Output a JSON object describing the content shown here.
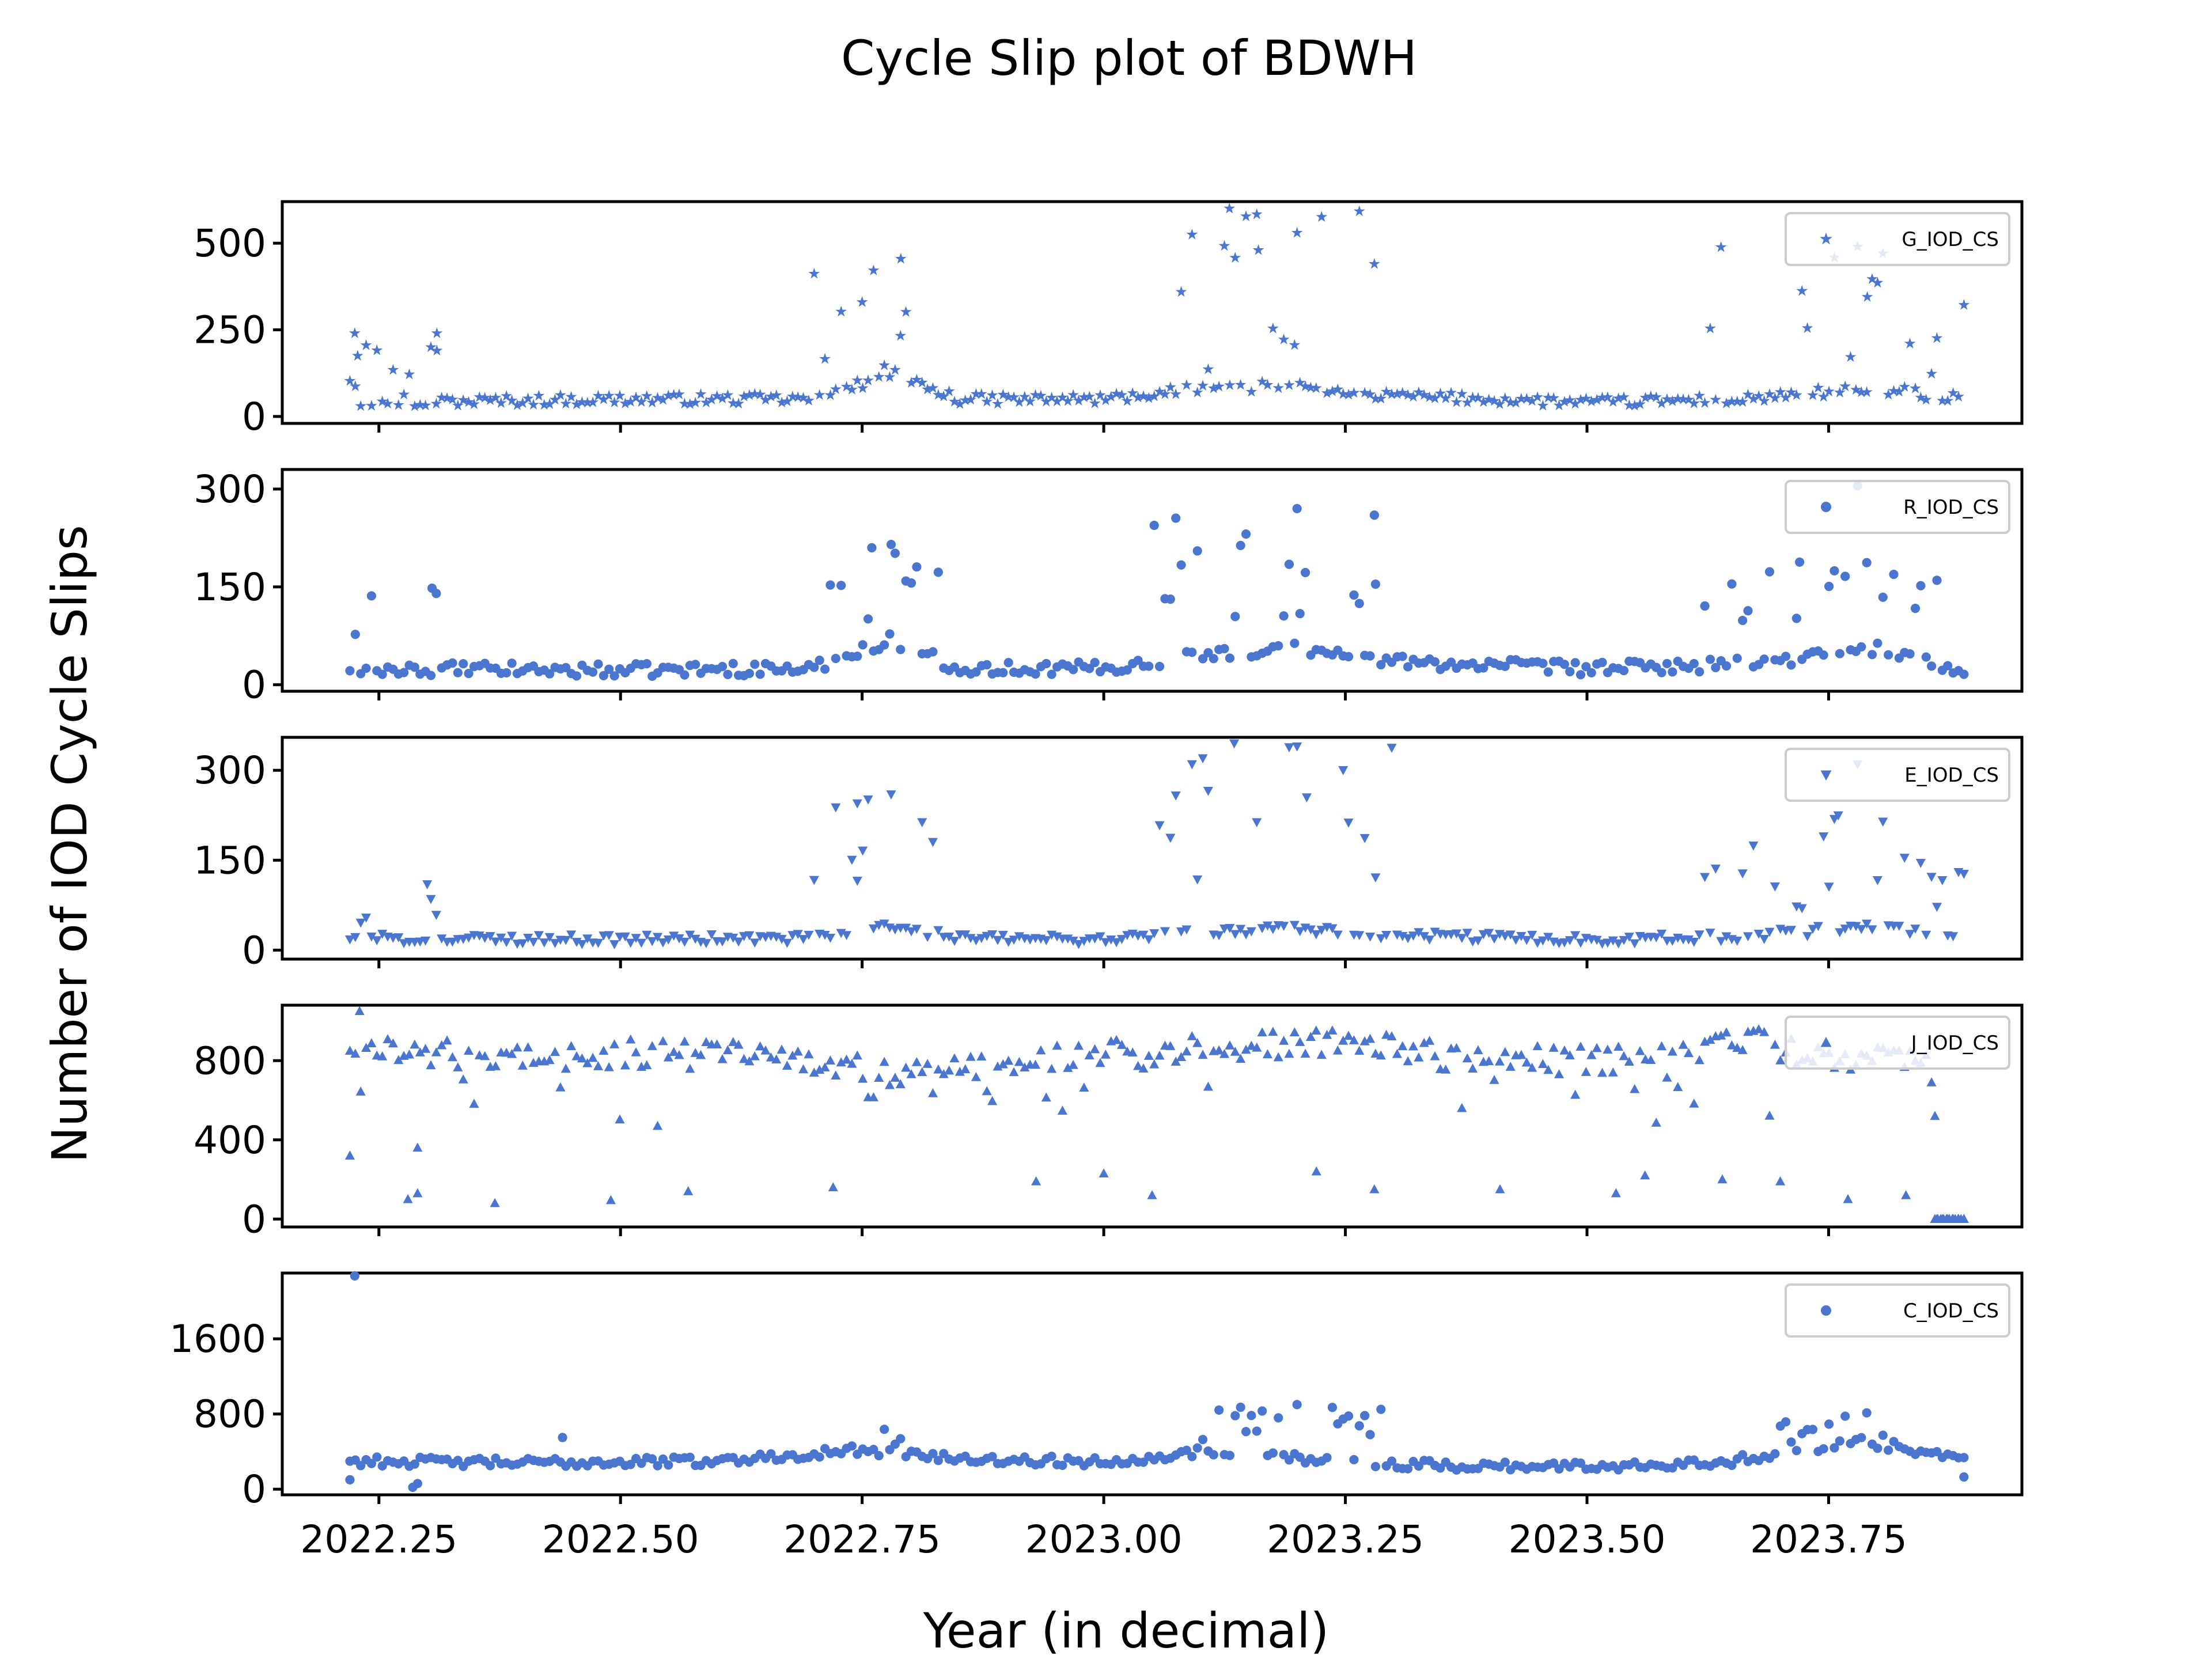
{
  "title": "Cycle Slip plot of BDWH",
  "xlabel": "Year (in decimal)",
  "ylabel": "Number of IOD Cycle Slips",
  "colors": {
    "marker": "#4a76cf",
    "axes": "#000000",
    "legend_border": "#cccccc"
  },
  "chart_data": {
    "type": "scatter",
    "xlim": [
      2022.15,
      2023.95
    ],
    "x_ticks": [
      2022.25,
      2022.5,
      2022.75,
      2023.0,
      2023.25,
      2023.5,
      2023.75
    ],
    "x_tick_labels": [
      "2022.25",
      "2022.50",
      "2022.75",
      "2023.00",
      "2023.25",
      "2023.50",
      "2023.75"
    ],
    "x_range": [
      2022.22,
      2023.89
    ],
    "grid": false,
    "legend_placement": "top-right",
    "panels": [
      {
        "name": "G_IOD_CS",
        "marker": "star",
        "ylim": [
          -20,
          620
        ],
        "y_ticks": [
          0,
          250,
          500
        ],
        "y_tick_labels": [
          "0",
          "250",
          "500"
        ],
        "baseline": [
          [
            2022.22,
            40
          ],
          [
            2022.5,
            50
          ],
          [
            2022.7,
            50
          ],
          [
            2022.78,
            120
          ],
          [
            2022.85,
            50
          ],
          [
            2023.0,
            50
          ],
          [
            2023.1,
            80
          ],
          [
            2023.2,
            90
          ],
          [
            2023.3,
            60
          ],
          [
            2023.5,
            40
          ],
          [
            2023.65,
            50
          ],
          [
            2023.8,
            80
          ],
          [
            2023.89,
            50
          ]
        ],
        "spike_windows": [
          [
            2022.22,
            2022.31,
            60,
            240
          ],
          [
            2022.7,
            2022.83,
            110,
            450
          ],
          [
            2023.05,
            2023.3,
            130,
            600
          ],
          [
            2023.62,
            2023.89,
            110,
            500
          ]
        ],
        "noise": 15,
        "points": [
          [
            2022.225,
            240
          ],
          [
            2022.228,
            175
          ],
          [
            2022.31,
            240
          ],
          [
            2022.31,
            190
          ],
          [
            2022.75,
            330
          ],
          [
            2022.79,
            455
          ],
          [
            2023.13,
            600
          ],
          [
            2023.16,
            480
          ],
          [
            2023.2,
            530
          ],
          [
            2023.28,
            440
          ],
          [
            2023.78,
            490
          ],
          [
            2023.79,
            345
          ]
        ]
      },
      {
        "name": "R_IOD_CS",
        "marker": "circle",
        "ylim": [
          -10,
          330
        ],
        "y_ticks": [
          0,
          150,
          300
        ],
        "y_tick_labels": [
          "0",
          "150",
          "300"
        ],
        "baseline": [
          [
            2022.22,
            25
          ],
          [
            2022.5,
            22
          ],
          [
            2022.7,
            25
          ],
          [
            2022.78,
            70
          ],
          [
            2022.85,
            25
          ],
          [
            2023.0,
            25
          ],
          [
            2023.1,
            45
          ],
          [
            2023.2,
            55
          ],
          [
            2023.3,
            35
          ],
          [
            2023.5,
            25
          ],
          [
            2023.65,
            30
          ],
          [
            2023.8,
            55
          ],
          [
            2023.89,
            20
          ]
        ],
        "spike_windows": [
          [
            2022.22,
            2022.31,
            40,
            150
          ],
          [
            2022.7,
            2022.83,
            90,
            215
          ],
          [
            2023.05,
            2023.3,
            100,
            265
          ],
          [
            2023.62,
            2023.89,
            80,
            190
          ]
        ],
        "noise": 10,
        "points": [
          [
            2022.305,
            148
          ],
          [
            2022.76,
            210
          ],
          [
            2022.78,
            215
          ],
          [
            2023.2,
            270
          ],
          [
            2023.28,
            260
          ],
          [
            2023.78,
            305
          ],
          [
            2023.72,
            188
          ]
        ]
      },
      {
        "name": "E_IOD_CS",
        "marker": "triangle-down",
        "ylim": [
          -15,
          355
        ],
        "y_ticks": [
          0,
          150,
          300
        ],
        "y_tick_labels": [
          "0",
          "150",
          "300"
        ],
        "baseline": [
          [
            2022.22,
            20
          ],
          [
            2022.5,
            18
          ],
          [
            2022.7,
            20
          ],
          [
            2022.78,
            40
          ],
          [
            2022.85,
            20
          ],
          [
            2023.0,
            18
          ],
          [
            2023.1,
            30
          ],
          [
            2023.2,
            35
          ],
          [
            2023.3,
            25
          ],
          [
            2023.5,
            18
          ],
          [
            2023.65,
            22
          ],
          [
            2023.8,
            40
          ],
          [
            2023.89,
            15
          ]
        ],
        "spike_windows": [
          [
            2022.22,
            2022.31,
            40,
            110
          ],
          [
            2022.7,
            2022.83,
            80,
            260
          ],
          [
            2023.05,
            2023.3,
            90,
            345
          ],
          [
            2023.62,
            2023.89,
            70,
            225
          ]
        ],
        "noise": 8,
        "points": [
          [
            2022.3,
            110
          ],
          [
            2022.745,
            245
          ],
          [
            2022.78,
            260
          ],
          [
            2023.135,
            345
          ],
          [
            2023.2,
            340
          ],
          [
            2023.21,
            255
          ],
          [
            2023.78,
            310
          ],
          [
            2023.76,
            225
          ]
        ]
      },
      {
        "name": "J_IOD_CS",
        "marker": "triangle-up",
        "ylim": [
          -40,
          1080
        ],
        "y_ticks": [
          0,
          400,
          800
        ],
        "y_tick_labels": [
          "0",
          "400",
          "800"
        ],
        "baseline": [
          [
            2022.22,
            860
          ],
          [
            2022.4,
            820
          ],
          [
            2022.6,
            850
          ],
          [
            2022.8,
            720
          ],
          [
            2022.9,
            800
          ],
          [
            2023.1,
            860
          ],
          [
            2023.25,
            900
          ],
          [
            2023.35,
            820
          ],
          [
            2023.55,
            800
          ],
          [
            2023.67,
            920
          ],
          [
            2023.75,
            780
          ],
          [
            2023.86,
            850
          ]
        ],
        "drops": 48,
        "noise": 70,
        "zero_from": 2023.86,
        "points": [
          [
            2022.22,
            320
          ],
          [
            2022.23,
            1050
          ],
          [
            2022.28,
            100
          ],
          [
            2022.29,
            130
          ],
          [
            2022.29,
            360
          ],
          [
            2022.37,
            80
          ],
          [
            2022.49,
            95
          ],
          [
            2022.57,
            140
          ],
          [
            2022.72,
            160
          ],
          [
            2022.93,
            190
          ],
          [
            2023.0,
            230
          ],
          [
            2023.05,
            120
          ],
          [
            2023.22,
            240
          ],
          [
            2023.28,
            150
          ],
          [
            2023.41,
            150
          ],
          [
            2023.53,
            130
          ],
          [
            2023.56,
            220
          ],
          [
            2023.64,
            200
          ],
          [
            2023.7,
            190
          ],
          [
            2023.77,
            100
          ],
          [
            2023.83,
            120
          ],
          [
            2023.86,
            520
          ]
        ]
      },
      {
        "name": "C_IOD_CS",
        "marker": "circle",
        "ylim": [
          -60,
          2300
        ],
        "y_ticks": [
          0,
          800,
          1600
        ],
        "y_tick_labels": [
          "0",
          "800",
          "1600"
        ],
        "baseline": [
          [
            2022.22,
            300
          ],
          [
            2022.4,
            280
          ],
          [
            2022.6,
            300
          ],
          [
            2022.75,
            420
          ],
          [
            2022.85,
            320
          ],
          [
            2023.0,
            290
          ],
          [
            2023.12,
            420
          ],
          [
            2023.2,
            330
          ],
          [
            2023.3,
            260
          ],
          [
            2023.5,
            240
          ],
          [
            2023.65,
            300
          ],
          [
            2023.78,
            520
          ],
          [
            2023.89,
            300
          ]
        ],
        "spike_windows": [
          [
            2022.73,
            2022.82,
            450,
            700
          ],
          [
            2023.1,
            2023.29,
            450,
            900
          ],
          [
            2023.7,
            2023.85,
            500,
            850
          ]
        ],
        "noise": 50,
        "points": [
          [
            2022.225,
            2270
          ],
          [
            2022.22,
            100
          ],
          [
            2022.29,
            60
          ],
          [
            2022.285,
            20
          ],
          [
            2022.44,
            550
          ],
          [
            2023.2,
            900
          ],
          [
            2023.89,
            130
          ]
        ]
      }
    ]
  }
}
